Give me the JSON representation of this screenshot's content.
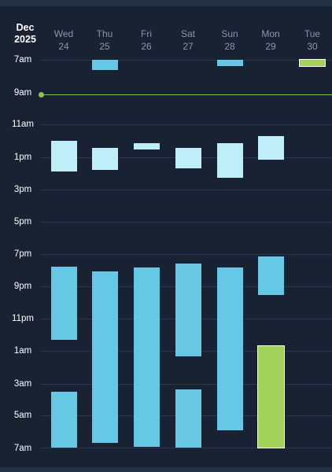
{
  "header": {
    "month": "Dec",
    "year": "2025",
    "days": [
      {
        "dow": "Wed",
        "date": "24"
      },
      {
        "dow": "Thu",
        "date": "25"
      },
      {
        "dow": "Fri",
        "date": "26"
      },
      {
        "dow": "Sat",
        "date": "27"
      },
      {
        "dow": "Sun",
        "date": "28"
      },
      {
        "dow": "Mon",
        "date": "29"
      },
      {
        "dow": "Tue",
        "date": "30"
      }
    ]
  },
  "time_labels": [
    "7am",
    "9am",
    "11am",
    "1pm",
    "3pm",
    "5pm",
    "7pm",
    "9pm",
    "11pm",
    "1am",
    "3am",
    "5am",
    "7am"
  ],
  "colors": {
    "background": "#192232",
    "event_light": "#bfeef8",
    "event_blue": "#66c8e4",
    "event_green": "#a3d15b",
    "now_indicator": "#8fc34f"
  }
}
